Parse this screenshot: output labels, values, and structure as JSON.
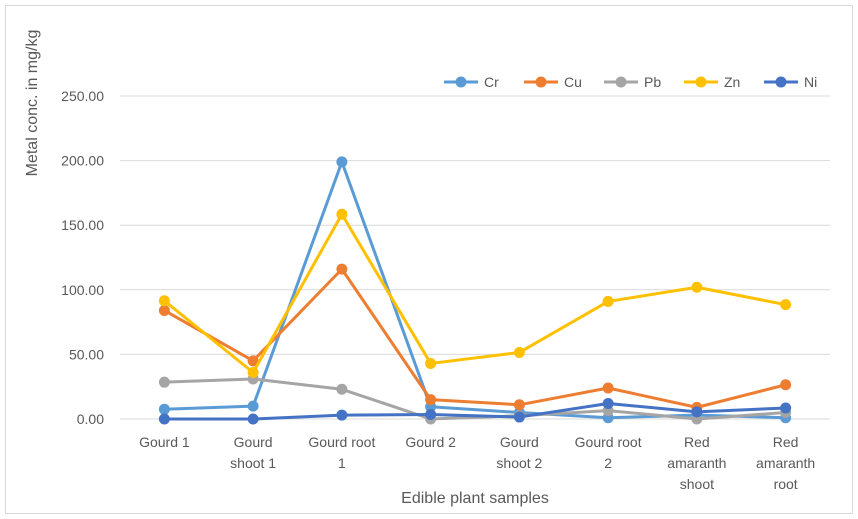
{
  "chart_data": {
    "type": "line",
    "title": "",
    "xlabel": "Edible plant samples",
    "ylabel": "Metal conc. in mg/kg",
    "ylim": [
      0,
      250
    ],
    "yticks": [
      "0.00",
      "50.00",
      "100.00",
      "150.00",
      "200.00",
      "250.00"
    ],
    "grid": "horizontal",
    "legend_position": "top-right",
    "categories": [
      [
        "Gourd 1"
      ],
      [
        "Gourd",
        "shoot 1"
      ],
      [
        "Gourd root",
        "1"
      ],
      [
        "Gourd 2"
      ],
      [
        "Gourd",
        "shoot 2"
      ],
      [
        "Gourd root",
        "2"
      ],
      [
        "Red",
        "amaranth",
        "shoot"
      ],
      [
        "Red",
        "amaranth",
        "root"
      ]
    ],
    "series": [
      {
        "name": "Cr",
        "color": "#5b9bd5",
        "values": [
          7.5,
          10,
          199,
          9.5,
          5,
          1,
          3,
          1
        ]
      },
      {
        "name": "Cu",
        "color": "#ed7d31",
        "values": [
          84,
          45,
          116,
          15,
          11,
          24,
          9,
          26.5
        ]
      },
      {
        "name": "Pb",
        "color": "#a5a5a5",
        "values": [
          28.5,
          31,
          23,
          0,
          2.5,
          6.5,
          0,
          5
        ]
      },
      {
        "name": "Zn",
        "color": "#ffc000",
        "values": [
          91.5,
          36,
          158.5,
          43,
          51.5,
          91,
          102,
          88.5
        ]
      },
      {
        "name": "Ni",
        "color": "#4472c4",
        "values": [
          0,
          0,
          3,
          3.5,
          1.5,
          12,
          5.5,
          8.5
        ]
      }
    ]
  }
}
